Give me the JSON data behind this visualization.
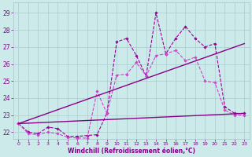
{
  "xlabel": "Windchill (Refroidissement éolien,°C)",
  "ylabel": "",
  "background_color": "#cceaea",
  "grid_color": "#aacccc",
  "line_color": "#880088",
  "xlim": [
    -0.5,
    23.5
  ],
  "ylim": [
    21.6,
    29.6
  ],
  "yticks": [
    22,
    23,
    24,
    25,
    26,
    27,
    28,
    29
  ],
  "xticks": [
    0,
    1,
    2,
    3,
    4,
    5,
    6,
    7,
    8,
    9,
    10,
    11,
    12,
    13,
    14,
    15,
    16,
    17,
    18,
    19,
    20,
    21,
    22,
    23
  ],
  "series": [
    {
      "x": [
        0,
        1,
        2,
        3,
        4,
        5,
        6,
        7,
        8,
        9,
        10,
        11,
        12,
        13,
        14,
        15,
        16,
        17,
        18,
        19,
        20,
        21,
        22,
        23
      ],
      "y": [
        22.5,
        22.0,
        21.9,
        22.3,
        22.2,
        21.75,
        21.75,
        21.8,
        21.85,
        23.1,
        27.3,
        27.5,
        26.5,
        25.3,
        29.0,
        26.6,
        27.5,
        28.2,
        27.5,
        27.0,
        27.2,
        23.5,
        23.1,
        23.1
      ],
      "color": "#990099",
      "linewidth": 0.8,
      "marker": "D",
      "markersize": 1.8,
      "linestyle": "--"
    },
    {
      "x": [
        0,
        1,
        2,
        3,
        4,
        5,
        6,
        7,
        8,
        9,
        10,
        11,
        12,
        13,
        14,
        15,
        16,
        17,
        18,
        19,
        20,
        21,
        22,
        23
      ],
      "y": [
        22.5,
        21.9,
        21.85,
        22.0,
        21.9,
        21.7,
        21.65,
        21.65,
        24.4,
        23.1,
        25.35,
        25.4,
        26.1,
        25.3,
        26.5,
        26.6,
        26.8,
        26.2,
        26.4,
        25.0,
        24.9,
        23.3,
        23.0,
        23.0
      ],
      "color": "#cc44cc",
      "linewidth": 0.8,
      "marker": "D",
      "markersize": 1.8,
      "linestyle": "--"
    },
    {
      "x": [
        0,
        23
      ],
      "y": [
        22.5,
        27.2
      ],
      "color": "#880088",
      "linewidth": 1.0,
      "marker": null,
      "markersize": 0,
      "linestyle": "-"
    },
    {
      "x": [
        0,
        23
      ],
      "y": [
        22.5,
        23.1
      ],
      "color": "#880088",
      "linewidth": 1.0,
      "marker": null,
      "markersize": 0,
      "linestyle": "-"
    }
  ]
}
